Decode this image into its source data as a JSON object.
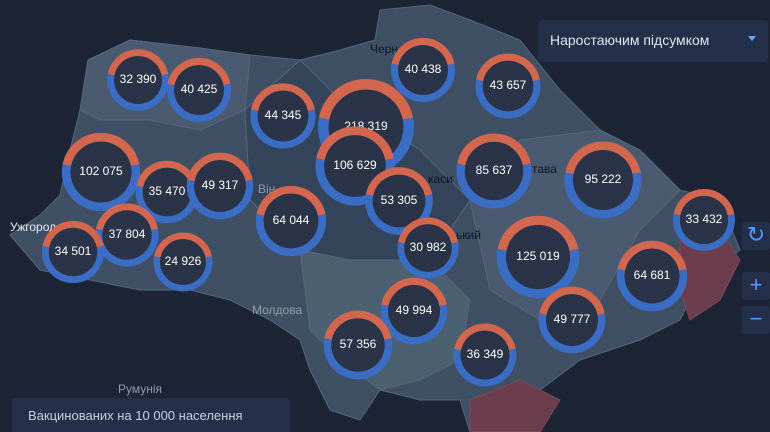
{
  "controls": {
    "mode": "Наростаючим підсумком"
  },
  "legend": {
    "text": "Вакцинованих на 10 000 населення"
  },
  "places": [
    "Ужгород",
    "Молдова",
    "Румунія",
    "Черн",
    "Він",
    "каси",
    "тава",
    "ький"
  ],
  "bubbles": [
    {
      "value": 32390,
      "label": "32 390"
    },
    {
      "value": 40425,
      "label": "40 425"
    },
    {
      "value": 44345,
      "label": "44 345"
    },
    {
      "value": 218319,
      "label": "218 319"
    },
    {
      "value": 40438,
      "label": "40 438"
    },
    {
      "value": 43657,
      "label": "43 657"
    },
    {
      "value": 102075,
      "label": "102 075"
    },
    {
      "value": 35470,
      "label": "35 470"
    },
    {
      "value": 49317,
      "label": "49 317"
    },
    {
      "value": 106629,
      "label": "106 629"
    },
    {
      "value": 53305,
      "label": "53 305"
    },
    {
      "value": 85637,
      "label": "85 637"
    },
    {
      "value": 95222,
      "label": "95 222"
    },
    {
      "value": 64044,
      "label": "64 044"
    },
    {
      "value": 37804,
      "label": "37 804"
    },
    {
      "value": 34501,
      "label": "34 501"
    },
    {
      "value": 24926,
      "label": "24 926"
    },
    {
      "value": 30982,
      "label": "30 982"
    },
    {
      "value": 125019,
      "label": "125 019"
    },
    {
      "value": 33432,
      "label": "33 432"
    },
    {
      "value": 64681,
      "label": "64 681"
    },
    {
      "value": 49994,
      "label": "49 994"
    },
    {
      "value": 49777,
      "label": "49 777"
    },
    {
      "value": 57356,
      "label": "57 356"
    },
    {
      "value": 36349,
      "label": "36 349"
    }
  ]
}
